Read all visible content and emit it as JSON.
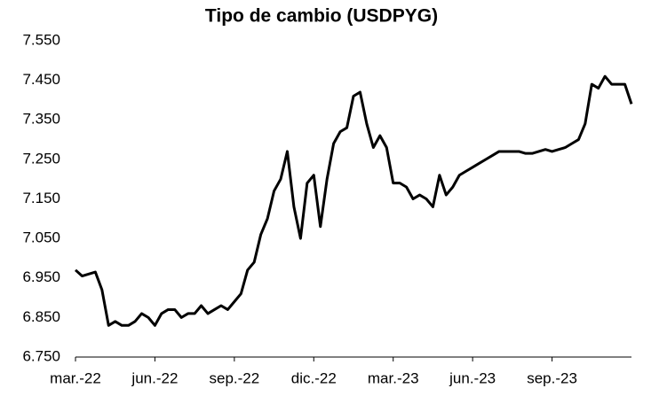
{
  "chart_data": {
    "type": "line",
    "title": "Tipo de cambio (USDPYG)",
    "categories": [
      "mar.-22",
      null,
      null,
      null,
      null,
      null,
      null,
      null,
      null,
      null,
      null,
      null,
      "jun.-22",
      null,
      null,
      null,
      null,
      null,
      null,
      null,
      null,
      null,
      null,
      null,
      "sep.-22",
      null,
      null,
      null,
      null,
      null,
      null,
      null,
      null,
      null,
      null,
      null,
      "dic.-22",
      null,
      null,
      null,
      null,
      null,
      null,
      null,
      null,
      null,
      null,
      null,
      "mar.-23",
      null,
      null,
      null,
      null,
      null,
      null,
      null,
      null,
      null,
      null,
      null,
      "jun.-23",
      null,
      null,
      null,
      null,
      null,
      null,
      null,
      null,
      null,
      null,
      null,
      "sep.-23",
      null,
      null,
      null,
      null,
      null,
      null,
      null,
      null,
      null,
      null,
      null,
      null
    ],
    "series": [
      {
        "name": "USDPYG",
        "color": "#000000",
        "values": [
          6970,
          6955,
          6960,
          6965,
          6920,
          6830,
          6840,
          6830,
          6830,
          6840,
          6860,
          6850,
          6830,
          6860,
          6870,
          6870,
          6850,
          6860,
          6860,
          6880,
          6860,
          6870,
          6880,
          6870,
          6890,
          6910,
          6970,
          6990,
          7060,
          7100,
          7170,
          7200,
          7270,
          7130,
          7050,
          7190,
          7210,
          7080,
          7200,
          7290,
          7320,
          7330,
          7410,
          7420,
          7340,
          7280,
          7310,
          7280,
          7190,
          7190,
          7180,
          7150,
          7160,
          7150,
          7130,
          7210,
          7160,
          7180,
          7210,
          7220,
          7230,
          7240,
          7250,
          7260,
          7270,
          7270,
          7270,
          7270,
          7265,
          7265,
          7270,
          7275,
          7270,
          7275,
          7280,
          7290,
          7300,
          7340,
          7440,
          7430,
          7460,
          7440,
          7440,
          7440,
          7390
        ]
      }
    ],
    "ylim": [
      6750,
      7550
    ],
    "yticks": [
      {
        "value": 6750,
        "label": "6.750"
      },
      {
        "value": 6850,
        "label": "6.850"
      },
      {
        "value": 6950,
        "label": "6.950"
      },
      {
        "value": 7050,
        "label": "7.050"
      },
      {
        "value": 7150,
        "label": "7.150"
      },
      {
        "value": 7250,
        "label": "7.250"
      },
      {
        "value": 7350,
        "label": "7.350"
      },
      {
        "value": 7450,
        "label": "7.450"
      },
      {
        "value": 7550,
        "label": "7.550"
      }
    ],
    "grid": false
  }
}
